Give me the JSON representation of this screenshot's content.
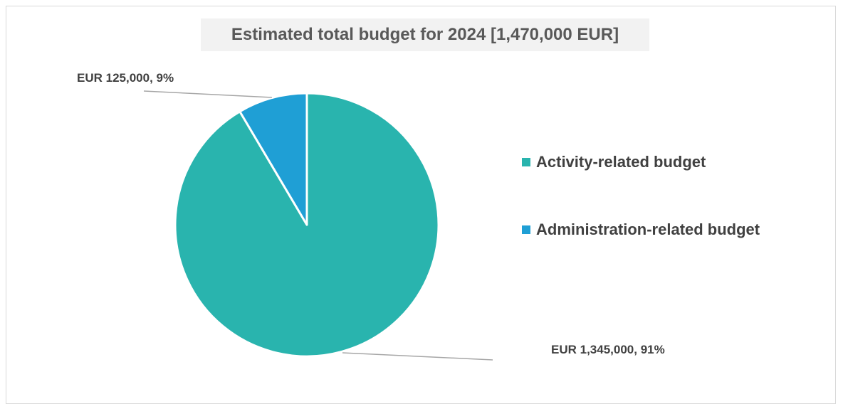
{
  "chart_data": {
    "type": "pie",
    "title": "Estimated total budget for 2024 [1,470,000 EUR]",
    "slices": [
      {
        "name": "Activity-related budget",
        "value": 1345000,
        "percent": 91,
        "label": "EUR 1,345,000, 91%",
        "color": "#29b4ae"
      },
      {
        "name": "Administration-related budget",
        "value": 125000,
        "percent": 9,
        "label": "EUR 125,000, 9%",
        "color": "#1f9fd5"
      }
    ],
    "legend_position": "right",
    "start_angle_deg": 0,
    "direction": "clockwise"
  }
}
